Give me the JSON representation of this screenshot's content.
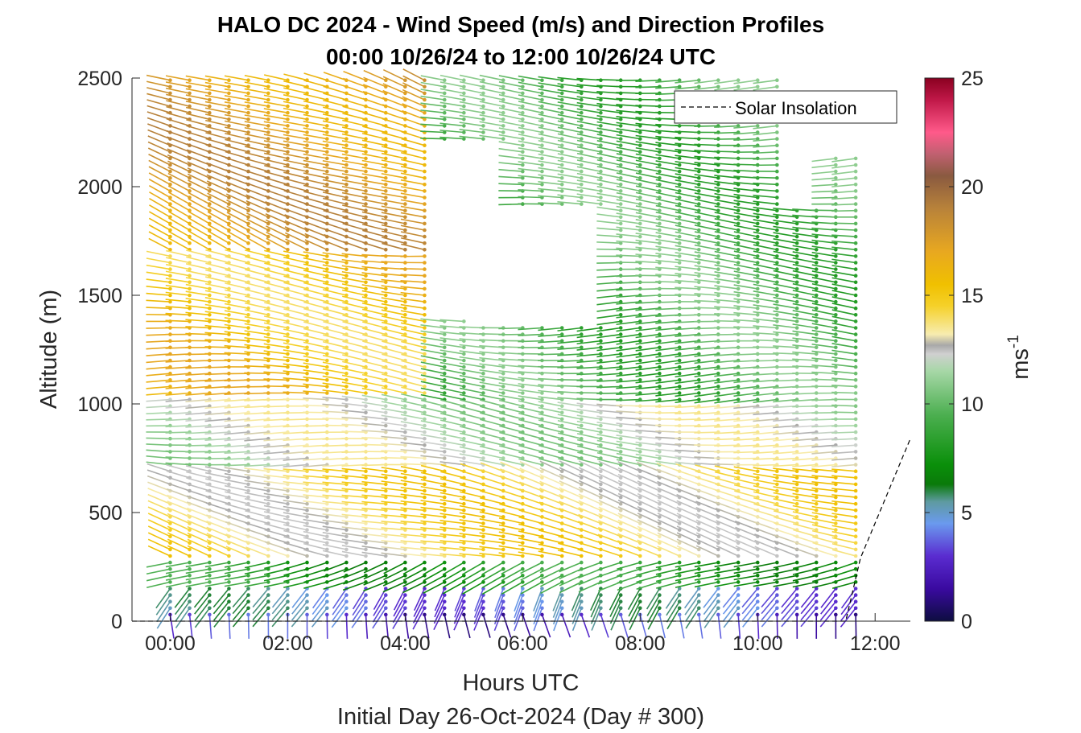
{
  "chart_data": {
    "type": "wind-barb-profile",
    "title": "HALO DC 2024 - Wind Speed (m/s) and Direction Profiles",
    "subtitle": "00:00 10/26/24 to 12:00 10/26/24  UTC",
    "xlabel": "Hours UTC",
    "xlabel2": "Initial Day 26-Oct-2024 (Day # 300)",
    "ylabel": "Altitude (m)",
    "xlim": [
      -0.65,
      12.6
    ],
    "ylim": [
      0,
      2500
    ],
    "xticks": [
      0,
      2,
      4,
      6,
      8,
      10,
      12
    ],
    "xtick_labels": [
      "00:00",
      "02:00",
      "04:00",
      "06:00",
      "08:00",
      "10:00",
      "12:00"
    ],
    "yticks": [
      0,
      500,
      1000,
      1500,
      2000,
      2500
    ],
    "ytick_labels": [
      "0",
      "500",
      "1000",
      "1500",
      "2000",
      "2500"
    ],
    "colorbar": {
      "label": "ms",
      "label_exponent": "-1",
      "range": [
        0,
        25
      ],
      "ticks": [
        0,
        5,
        10,
        15,
        20,
        25
      ],
      "tick_labels": [
        "0",
        "5",
        "10",
        "15",
        "20",
        "25"
      ],
      "stops": [
        {
          "v": 0,
          "c": "#0d0d40"
        },
        {
          "v": 1.5,
          "c": "#3a0aa0"
        },
        {
          "v": 3,
          "c": "#5a2cd0"
        },
        {
          "v": 4.5,
          "c": "#6a9aee"
        },
        {
          "v": 5.5,
          "c": "#5e9aa0"
        },
        {
          "v": 6.3,
          "c": "#0a7a0a"
        },
        {
          "v": 7.2,
          "c": "#0a8f0a"
        },
        {
          "v": 9.5,
          "c": "#4caf50"
        },
        {
          "v": 11.5,
          "c": "#a6d7a6"
        },
        {
          "v": 12.3,
          "c": "#d0d0d0"
        },
        {
          "v": 12.7,
          "c": "#a8a8a8"
        },
        {
          "v": 13.2,
          "c": "#f7ecb0"
        },
        {
          "v": 14.5,
          "c": "#f5d12a"
        },
        {
          "v": 15.5,
          "c": "#f0c000"
        },
        {
          "v": 17,
          "c": "#e8a820"
        },
        {
          "v": 19,
          "c": "#b8823a"
        },
        {
          "v": 20.5,
          "c": "#8a5a40"
        },
        {
          "v": 21.5,
          "c": "#c06070"
        },
        {
          "v": 22.5,
          "c": "#ff5a8a"
        },
        {
          "v": 24,
          "c": "#c01848"
        },
        {
          "v": 25,
          "c": "#8a0020"
        }
      ]
    },
    "legend": {
      "entries": [
        "Solar Insolation"
      ],
      "placement": "top-right"
    },
    "series": [
      {
        "name": "Solar Insolation",
        "style": "dashed",
        "color": "#000000",
        "x": [
          -0.65,
          11.5,
          11.75,
          12.6
        ],
        "y": [
          0,
          0,
          290,
          840
        ]
      }
    ],
    "wind_profiles": {
      "times": [
        0,
        0.33,
        0.67,
        1,
        1.33,
        1.67,
        2,
        2.33,
        2.67,
        3,
        3.33,
        3.67,
        4,
        4.33,
        4.67,
        5,
        5.33,
        5.67,
        6,
        6.33,
        6.67,
        7,
        7.33,
        7.67,
        8,
        8.33,
        8.67,
        9,
        9.33,
        9.67,
        10,
        10.33,
        10.67,
        11,
        11.33,
        11.67
      ],
      "altitudes_start": 30,
      "altitudes_step": 30,
      "altitudes_end": 2490,
      "layers": [
        {
          "z": [
            0,
            60
          ],
          "speed": 2.5,
          "dir_deg": 170
        },
        {
          "z": [
            60,
            180
          ],
          "speed": 4.5,
          "dir_deg": 210
        },
        {
          "z": [
            180,
            300
          ],
          "speed": 8,
          "dir_deg": 250
        },
        {
          "z": [
            300,
            700
          ],
          "speed": 14,
          "dir_deg": 285
        },
        {
          "z": [
            700,
            1050
          ],
          "speed": 12,
          "dir_deg": 275
        },
        {
          "z": [
            1050,
            1700
          ],
          "speed": 15.5,
          "dir_deg": 275
        },
        {
          "z": [
            1700,
            2500
          ],
          "speed": 17.5,
          "dir_deg": 290
        }
      ],
      "notes": "Columns every ~20 min from 00:00 to 11:40 UTC; after ~04:30 upper levels shift to 8-11 m/s greens with gaps near 1400-2200 m."
    }
  }
}
